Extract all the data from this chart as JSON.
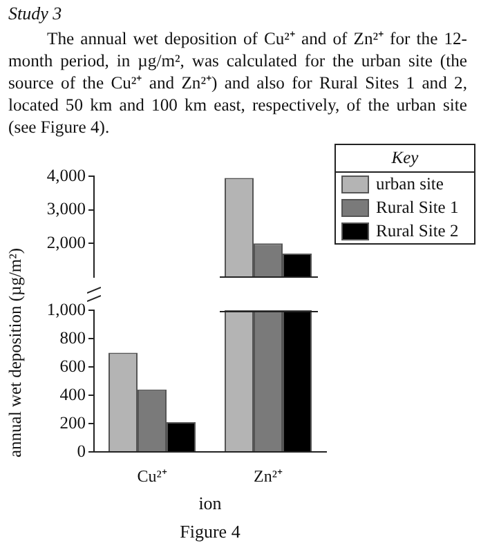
{
  "chart_data": [
    {
      "type": "other",
      "title": "Study 3",
      "subtitle": "The annual wet deposition of Cu²⁺ and of Zn²⁺ for the 12-month period, in µg/m², was calculated for the urban site (the source of the Cu²⁺ and Zn²⁺) and also for Rural Sites 1 and 2, located 50 km and 100 km east, respectively, of the urban site (see Figure 4)."
    },
    {
      "type": "bar",
      "legend_title": "Key",
      "categories": [
        null
      ],
      "series": [
        {
          "name": "urban site",
          "color": "#b4b4b4",
          "values": [
            3950
          ]
        },
        {
          "name": "Rural Site 1",
          "color": "#7a7a7a",
          "values": [
            2000
          ]
        },
        {
          "name": "Rural Site 2",
          "color": "#000000",
          "values": [
            1700
          ]
        }
      ],
      "ylim": [
        1000,
        4000
      ],
      "yticks": [
        {
          "value": 2000,
          "label": "2,000"
        },
        {
          "value": 3000,
          "label": "3,000"
        },
        {
          "value": 4000,
          "label": "4,000"
        }
      ],
      "tick_labels": "y",
      "legend": "top right"
    },
    {
      "type": "bar",
      "xlabel": "ion",
      "ylabel": "annual wet deposition (µg/m²)",
      "annotations": [
        "Figure 4"
      ],
      "categories": [
        "Cu²⁺",
        "Zn²⁺"
      ],
      "series": [
        {
          "color": "#b4b4b4",
          "values": [
            700,
            1000
          ]
        },
        {
          "color": "#7a7a7a",
          "values": [
            440,
            1000
          ]
        },
        {
          "color": "#000000",
          "values": [
            210,
            1000
          ]
        }
      ],
      "ylim": [
        0,
        1000
      ],
      "yticks": [
        0,
        200,
        400,
        600,
        800,
        {
          "value": 1000,
          "label": "1,000"
        }
      ]
    }
  ]
}
